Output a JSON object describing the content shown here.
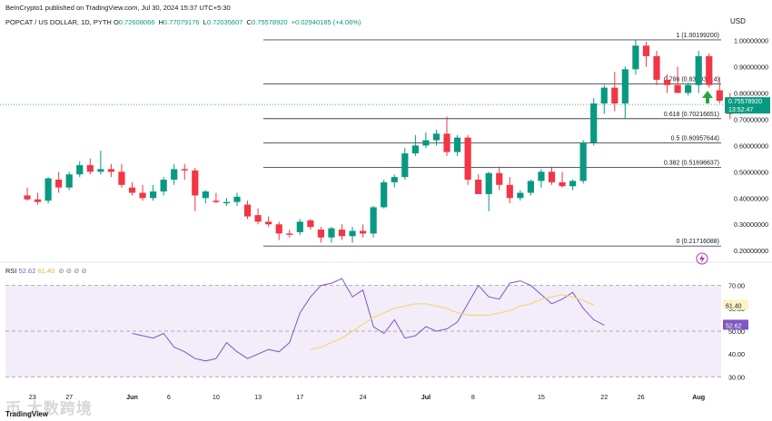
{
  "header": {
    "publish_line": "BeInCrypto1 published on TradingView.com, Jul 30, 2024 15:37 UTC+5:30",
    "symbol_line": "POPCAT / US DOLLAR, 1D, PYTH",
    "ohlc": [
      {
        "label": "O",
        "value": "0.72608066"
      },
      {
        "label": "H",
        "value": "0.77079176"
      },
      {
        "label": "L",
        "value": "0.72035607"
      },
      {
        "label": "C",
        "value": "0.75578920"
      }
    ],
    "change": "+0.02940185 (+4.06%)",
    "currency": "USD"
  },
  "rsi_legend": {
    "label": "RSI",
    "rsi_value": "52.62",
    "ma_value": "61.40",
    "icons": "⊘ ⊘ ⊘ ⊘"
  },
  "watermark": "币 大数跨境",
  "brand": "TradingView",
  "colors": {
    "up": "#089981",
    "down": "#f23645",
    "rsi": "#7e57c2",
    "rsi_ma": "#f5d67a",
    "band": "#ede7f6",
    "fib": "#434651",
    "price_tag": "#089981",
    "rsi_tag": "#7e57c2",
    "ma_tag": "#fff3c4"
  },
  "chart_data": [
    {
      "type": "candlestick",
      "title": "POPCAT / US DOLLAR, 1D, PYTH",
      "ylim": [
        0.18,
        1.05
      ],
      "y_ticks": [
        "1.00000000",
        "0.90000000",
        "0.80000000",
        "0.70000000",
        "0.60000000",
        "0.50000000",
        "0.40000000",
        "0.30000000",
        "0.20000000"
      ],
      "y_tick_values": [
        1.0,
        0.9,
        0.8,
        0.7,
        0.6,
        0.5,
        0.4,
        0.3,
        0.2
      ],
      "x_ticks": [
        "23",
        "27",
        "Jun",
        "6",
        "10",
        "13",
        "17",
        "24",
        "Jul",
        "8",
        "15",
        "22",
        "26",
        "Aug"
      ],
      "x_tick_index": [
        0.5,
        4,
        10,
        13.5,
        18,
        22,
        26,
        32,
        38,
        42.5,
        49,
        55,
        58.5,
        64
      ],
      "last_price": "0.75578920",
      "countdown": "13:52:47",
      "fib_levels": [
        {
          "label": "1 (1.00199200)",
          "value": 1.001992
        },
        {
          "label": "0.786 (0.83403814)",
          "value": 0.83403814
        },
        {
          "label": "0.618 (0.70216651)",
          "value": 0.70216651
        },
        {
          "label": "0.5 (0.60957644)",
          "value": 0.60957644
        },
        {
          "label": "0.382 (0.51696637)",
          "value": 0.51696637
        },
        {
          "label": "0 (0.21716088)",
          "value": 0.21716088
        }
      ],
      "candles": [
        {
          "o": 0.41,
          "h": 0.44,
          "l": 0.39,
          "c": 0.395
        },
        {
          "o": 0.395,
          "h": 0.42,
          "l": 0.375,
          "c": 0.385
        },
        {
          "o": 0.39,
          "h": 0.48,
          "l": 0.38,
          "c": 0.475
        },
        {
          "o": 0.47,
          "h": 0.5,
          "l": 0.42,
          "c": 0.44
        },
        {
          "o": 0.44,
          "h": 0.5,
          "l": 0.43,
          "c": 0.49
        },
        {
          "o": 0.49,
          "h": 0.54,
          "l": 0.48,
          "c": 0.525
        },
        {
          "o": 0.525,
          "h": 0.55,
          "l": 0.49,
          "c": 0.5
        },
        {
          "o": 0.5,
          "h": 0.58,
          "l": 0.49,
          "c": 0.51
        },
        {
          "o": 0.51,
          "h": 0.53,
          "l": 0.48,
          "c": 0.5
        },
        {
          "o": 0.5,
          "h": 0.53,
          "l": 0.44,
          "c": 0.45
        },
        {
          "o": 0.44,
          "h": 0.46,
          "l": 0.41,
          "c": 0.42
        },
        {
          "o": 0.42,
          "h": 0.45,
          "l": 0.39,
          "c": 0.4
        },
        {
          "o": 0.4,
          "h": 0.45,
          "l": 0.39,
          "c": 0.425
        },
        {
          "o": 0.425,
          "h": 0.48,
          "l": 0.41,
          "c": 0.47
        },
        {
          "o": 0.47,
          "h": 0.53,
          "l": 0.45,
          "c": 0.51
        },
        {
          "o": 0.51,
          "h": 0.53,
          "l": 0.47,
          "c": 0.505
        },
        {
          "o": 0.505,
          "h": 0.515,
          "l": 0.35,
          "c": 0.41
        },
        {
          "o": 0.4,
          "h": 0.43,
          "l": 0.38,
          "c": 0.425
        },
        {
          "o": 0.39,
          "h": 0.42,
          "l": 0.38,
          "c": 0.385
        },
        {
          "o": 0.38,
          "h": 0.4,
          "l": 0.37,
          "c": 0.385
        },
        {
          "o": 0.385,
          "h": 0.42,
          "l": 0.37,
          "c": 0.405
        },
        {
          "o": 0.375,
          "h": 0.39,
          "l": 0.32,
          "c": 0.33
        },
        {
          "o": 0.335,
          "h": 0.36,
          "l": 0.3,
          "c": 0.31
        },
        {
          "o": 0.31,
          "h": 0.33,
          "l": 0.29,
          "c": 0.3
        },
        {
          "o": 0.3,
          "h": 0.31,
          "l": 0.24,
          "c": 0.265
        },
        {
          "o": 0.265,
          "h": 0.28,
          "l": 0.25,
          "c": 0.26
        },
        {
          "o": 0.27,
          "h": 0.32,
          "l": 0.26,
          "c": 0.31
        },
        {
          "o": 0.315,
          "h": 0.32,
          "l": 0.28,
          "c": 0.29
        },
        {
          "o": 0.28,
          "h": 0.29,
          "l": 0.23,
          "c": 0.25
        },
        {
          "o": 0.25,
          "h": 0.29,
          "l": 0.23,
          "c": 0.285
        },
        {
          "o": 0.28,
          "h": 0.3,
          "l": 0.24,
          "c": 0.255
        },
        {
          "o": 0.255,
          "h": 0.29,
          "l": 0.23,
          "c": 0.275
        },
        {
          "o": 0.275,
          "h": 0.3,
          "l": 0.25,
          "c": 0.265
        },
        {
          "o": 0.265,
          "h": 0.37,
          "l": 0.25,
          "c": 0.365
        },
        {
          "o": 0.365,
          "h": 0.47,
          "l": 0.36,
          "c": 0.46
        },
        {
          "o": 0.46,
          "h": 0.49,
          "l": 0.44,
          "c": 0.48
        },
        {
          "o": 0.48,
          "h": 0.59,
          "l": 0.47,
          "c": 0.57
        },
        {
          "o": 0.57,
          "h": 0.64,
          "l": 0.56,
          "c": 0.6
        },
        {
          "o": 0.6,
          "h": 0.65,
          "l": 0.59,
          "c": 0.62
        },
        {
          "o": 0.62,
          "h": 0.66,
          "l": 0.6,
          "c": 0.645
        },
        {
          "o": 0.645,
          "h": 0.71,
          "l": 0.56,
          "c": 0.575
        },
        {
          "o": 0.575,
          "h": 0.64,
          "l": 0.56,
          "c": 0.63
        },
        {
          "o": 0.63,
          "h": 0.64,
          "l": 0.45,
          "c": 0.47
        },
        {
          "o": 0.47,
          "h": 0.49,
          "l": 0.42,
          "c": 0.415
        },
        {
          "o": 0.415,
          "h": 0.5,
          "l": 0.35,
          "c": 0.495
        },
        {
          "o": 0.495,
          "h": 0.52,
          "l": 0.43,
          "c": 0.45
        },
        {
          "o": 0.45,
          "h": 0.48,
          "l": 0.38,
          "c": 0.4
        },
        {
          "o": 0.4,
          "h": 0.43,
          "l": 0.39,
          "c": 0.42
        },
        {
          "o": 0.42,
          "h": 0.47,
          "l": 0.41,
          "c": 0.465
        },
        {
          "o": 0.465,
          "h": 0.51,
          "l": 0.44,
          "c": 0.5
        },
        {
          "o": 0.5,
          "h": 0.52,
          "l": 0.45,
          "c": 0.46
        },
        {
          "o": 0.46,
          "h": 0.5,
          "l": 0.44,
          "c": 0.445
        },
        {
          "o": 0.445,
          "h": 0.47,
          "l": 0.43,
          "c": 0.465
        },
        {
          "o": 0.465,
          "h": 0.62,
          "l": 0.455,
          "c": 0.61
        },
        {
          "o": 0.61,
          "h": 0.78,
          "l": 0.6,
          "c": 0.76
        },
        {
          "o": 0.76,
          "h": 0.83,
          "l": 0.72,
          "c": 0.82
        },
        {
          "o": 0.82,
          "h": 0.88,
          "l": 0.73,
          "c": 0.76
        },
        {
          "o": 0.76,
          "h": 0.9,
          "l": 0.7,
          "c": 0.89
        },
        {
          "o": 0.89,
          "h": 1.0,
          "l": 0.87,
          "c": 0.98
        },
        {
          "o": 0.98,
          "h": 0.995,
          "l": 0.9,
          "c": 0.94
        },
        {
          "o": 0.94,
          "h": 0.96,
          "l": 0.83,
          "c": 0.85
        },
        {
          "o": 0.85,
          "h": 0.87,
          "l": 0.8,
          "c": 0.83
        },
        {
          "o": 0.83,
          "h": 0.9,
          "l": 0.8,
          "c": 0.8
        },
        {
          "o": 0.8,
          "h": 0.84,
          "l": 0.79,
          "c": 0.83
        },
        {
          "o": 0.83,
          "h": 0.96,
          "l": 0.8,
          "c": 0.94
        },
        {
          "o": 0.94,
          "h": 0.95,
          "l": 0.82,
          "c": 0.83
        },
        {
          "o": 0.81,
          "h": 0.86,
          "l": 0.76,
          "c": 0.77
        },
        {
          "o": 0.77,
          "h": 0.8,
          "l": 0.7,
          "c": 0.72
        },
        {
          "o": 0.726,
          "h": 0.771,
          "l": 0.72,
          "c": 0.756
        }
      ]
    },
    {
      "type": "line",
      "title": "RSI",
      "ylim": [
        25,
        75
      ],
      "y_ticks": [
        "70.00",
        "60.00",
        "50.00",
        "40.00",
        "30.00"
      ],
      "y_tick_values": [
        70,
        60,
        50,
        40,
        30
      ],
      "band": [
        30,
        70
      ],
      "series": [
        {
          "name": "RSI",
          "start_index": 10,
          "values": [
            49,
            48,
            47,
            49,
            43,
            41,
            38,
            37,
            38,
            45,
            41,
            38,
            40,
            42,
            41,
            45,
            58,
            65,
            70,
            71,
            73,
            65,
            68,
            52,
            49,
            55,
            47,
            48,
            52,
            50,
            51,
            54,
            62,
            70,
            65,
            64,
            71,
            72,
            70,
            66,
            62,
            64,
            67,
            60,
            55,
            52.62
          ],
          "last": "52.62"
        },
        {
          "name": "RSI-based MA",
          "start_index": 27,
          "values": [
            42,
            43,
            45,
            47,
            50,
            53,
            56,
            58,
            60,
            61,
            62,
            62,
            61,
            60,
            58,
            57,
            57,
            57,
            58,
            59,
            61,
            62,
            64,
            65,
            66,
            65,
            63.5,
            61.4
          ],
          "last": "61.40"
        }
      ]
    }
  ]
}
